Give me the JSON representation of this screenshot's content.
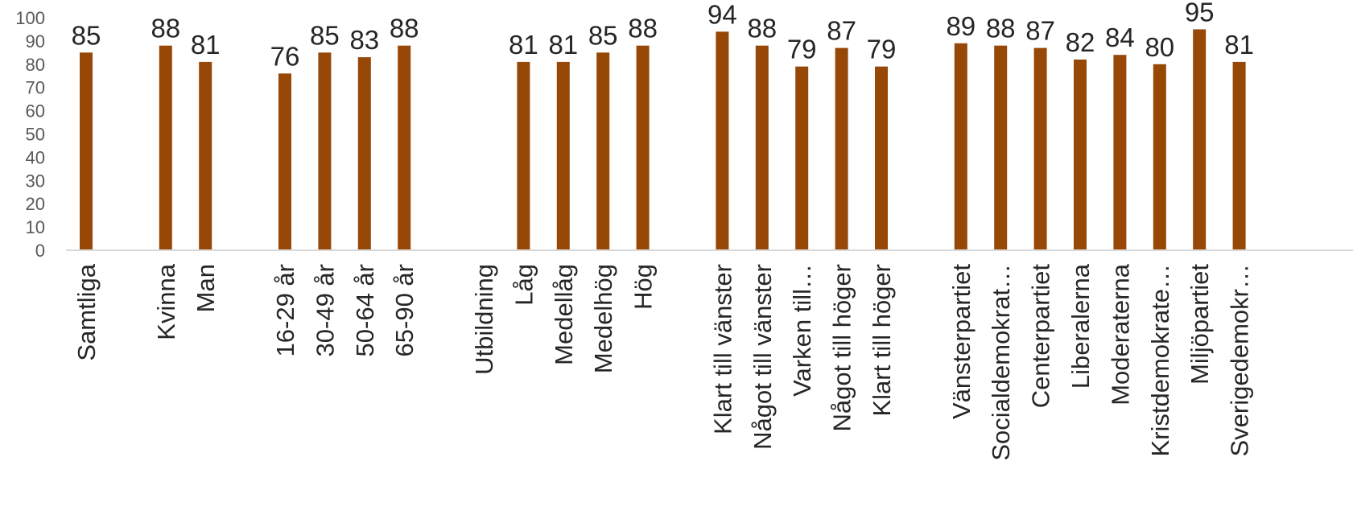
{
  "chart_data": {
    "type": "bar",
    "categories": [
      "Samtliga",
      "",
      "Kvinna",
      "Man",
      "",
      "16-29 år",
      "30-49 år",
      "50-64 år",
      "65-90 år",
      "",
      "Utbildning",
      "Låg",
      "Medellåg",
      "Medelhög",
      "Hög",
      "",
      "Klart till vänster",
      "Något till vänster",
      "Varken till…",
      "Något till höger",
      "Klart till höger",
      "",
      "Vänsterpartiet",
      "Socialdemokrat…",
      "Centerpartiet",
      "Liberalerna",
      "Moderaterna",
      "Kristdemokrate…",
      "Miljöpartiet",
      "Sverigedemokr…"
    ],
    "values": [
      85,
      null,
      88,
      81,
      null,
      76,
      85,
      83,
      88,
      null,
      null,
      81,
      81,
      85,
      88,
      null,
      94,
      88,
      79,
      87,
      79,
      null,
      89,
      88,
      87,
      82,
      84,
      80,
      95,
      81
    ],
    "data_labels": [
      "85",
      "",
      "88",
      "81",
      "",
      "76",
      "85",
      "83",
      "88",
      "",
      "",
      "81",
      "81",
      "85",
      "88",
      "",
      "94",
      "88",
      "79",
      "87",
      "79",
      "",
      "89",
      "88",
      "87",
      "82",
      "84",
      "80",
      "95",
      "81"
    ],
    "yticks": [
      "0",
      "10",
      "20",
      "30",
      "40",
      "50",
      "60",
      "70",
      "80",
      "90",
      "100"
    ],
    "ylim": [
      0,
      100
    ],
    "title": "",
    "xlabel": "",
    "ylabel": "",
    "grid": false,
    "legend": "none",
    "bar_color": "#974706",
    "axis_color": "#d9d9d9"
  }
}
